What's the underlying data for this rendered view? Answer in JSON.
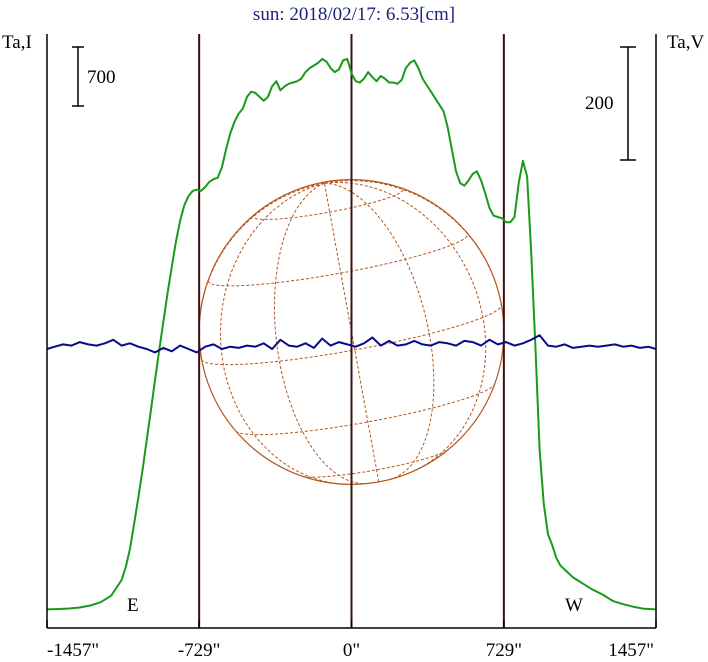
{
  "chart_data": {
    "type": "line",
    "title": "sun: 2018/02/17: 6.53[cm]",
    "ylabel_left": "Ta,I",
    "ylabel_right": "Ta,V",
    "scale_left_label": "700",
    "scale_right_label": "200",
    "limb_label_east": "E",
    "limb_label_west": "W",
    "xlim": [
      -1457,
      1457
    ],
    "x_ticks": [
      {
        "value": -1457,
        "label": "-1457\""
      },
      {
        "value": -729,
        "label": "-729\""
      },
      {
        "value": 0,
        "label": "0\""
      },
      {
        "value": 729,
        "label": "729\""
      },
      {
        "value": 1457,
        "label": "1457\""
      }
    ],
    "vertical_lines_x": [
      -729,
      0,
      729
    ],
    "axis_bottom_ticks_x": [
      -1457,
      -729,
      0,
      729,
      1457
    ],
    "grid": false,
    "colors": {
      "intensity": "#1a9a1a",
      "polarization": "#0a0a8c",
      "disk": "#b5551e",
      "frame": "#000000",
      "title": "#1a237e"
    },
    "series": [
      {
        "key": "intensity",
        "x": [
          -1457,
          -1400,
          -1350,
          -1300,
          -1250,
          -1200,
          -1150,
          -1100,
          -1080,
          -1060,
          -1040,
          -1020,
          -1000,
          -980,
          -960,
          -940,
          -920,
          -900,
          -880,
          -860,
          -840,
          -820,
          -800,
          -780,
          -760,
          -740,
          -720,
          -700,
          -680,
          -660,
          -640,
          -620,
          -600,
          -580,
          -560,
          -540,
          -520,
          -500,
          -480,
          -460,
          -440,
          -420,
          -400,
          -380,
          -360,
          -340,
          -320,
          -300,
          -280,
          -260,
          -240,
          -220,
          -200,
          -180,
          -160,
          -140,
          -120,
          -100,
          -80,
          -60,
          -40,
          -20,
          0,
          20,
          40,
          60,
          80,
          100,
          120,
          140,
          160,
          180,
          200,
          220,
          240,
          260,
          280,
          300,
          320,
          340,
          360,
          380,
          400,
          420,
          440,
          460,
          480,
          500,
          520,
          540,
          560,
          580,
          600,
          620,
          640,
          660,
          680,
          700,
          720,
          740,
          760,
          780,
          800,
          820,
          840,
          860,
          880,
          900,
          920,
          940,
          960,
          980,
          1000,
          1020,
          1040,
          1060,
          1080,
          1100,
          1150,
          1200,
          1250,
          1300,
          1350,
          1400,
          1457
        ],
        "y": [
          35,
          38,
          42,
          50,
          65,
          90,
          140,
          260,
          360,
          500,
          690,
          890,
          1100,
          1330,
          1560,
          1790,
          2020,
          2240,
          2460,
          2660,
          2850,
          3010,
          3130,
          3200,
          3240,
          3250,
          3240,
          3270,
          3310,
          3330,
          3340,
          3420,
          3560,
          3680,
          3770,
          3830,
          3870,
          3960,
          4000,
          3990,
          3960,
          3930,
          3960,
          4040,
          4080,
          4010,
          4040,
          4060,
          4070,
          4080,
          4100,
          4150,
          4180,
          4200,
          4220,
          4250,
          4230,
          4180,
          4150,
          4170,
          4240,
          4250,
          4140,
          4080,
          4070,
          4100,
          4150,
          4110,
          4080,
          4120,
          4100,
          4070,
          4070,
          4060,
          4090,
          4180,
          4220,
          4240,
          4180,
          4100,
          4050,
          4000,
          3950,
          3900,
          3850,
          3730,
          3560,
          3390,
          3300,
          3280,
          3320,
          3370,
          3390,
          3320,
          3220,
          3110,
          3050,
          3040,
          3030,
          3000,
          3000,
          3040,
          3300,
          3470,
          3350,
          2770,
          2050,
          1260,
          840,
          610,
          530,
          430,
          370,
          340,
          310,
          280,
          260,
          240,
          190,
          150,
          100,
          75,
          55,
          40,
          35
        ]
      },
      {
        "key": "polarization",
        "x": [
          -1457,
          -1420,
          -1380,
          -1340,
          -1300,
          -1260,
          -1220,
          -1180,
          -1140,
          -1100,
          -1060,
          -1020,
          -980,
          -940,
          -900,
          -860,
          -820,
          -780,
          -740,
          -700,
          -660,
          -620,
          -580,
          -540,
          -500,
          -460,
          -420,
          -380,
          -340,
          -300,
          -260,
          -220,
          -180,
          -140,
          -100,
          -60,
          -20,
          20,
          60,
          100,
          140,
          180,
          220,
          260,
          300,
          340,
          380,
          420,
          460,
          500,
          540,
          580,
          620,
          660,
          700,
          740,
          780,
          820,
          860,
          900,
          940,
          980,
          1020,
          1060,
          1100,
          1140,
          1180,
          1220,
          1260,
          1300,
          1340,
          1380,
          1420,
          1457
        ],
        "y": [
          0,
          2,
          4,
          3,
          6,
          4,
          3,
          5,
          8,
          3,
          5,
          2,
          0,
          -3,
          1,
          -2,
          3,
          0,
          -3,
          2,
          4,
          0,
          2,
          1,
          3,
          2,
          5,
          0,
          8,
          3,
          2,
          5,
          1,
          9,
          3,
          6,
          4,
          2,
          5,
          10,
          3,
          7,
          3,
          4,
          7,
          4,
          3,
          6,
          5,
          3,
          7,
          6,
          3,
          8,
          4,
          6,
          3,
          5,
          8,
          12,
          3,
          2,
          4,
          1,
          2,
          3,
          2,
          3,
          4,
          2,
          3,
          1,
          2,
          0
        ]
      }
    ]
  }
}
